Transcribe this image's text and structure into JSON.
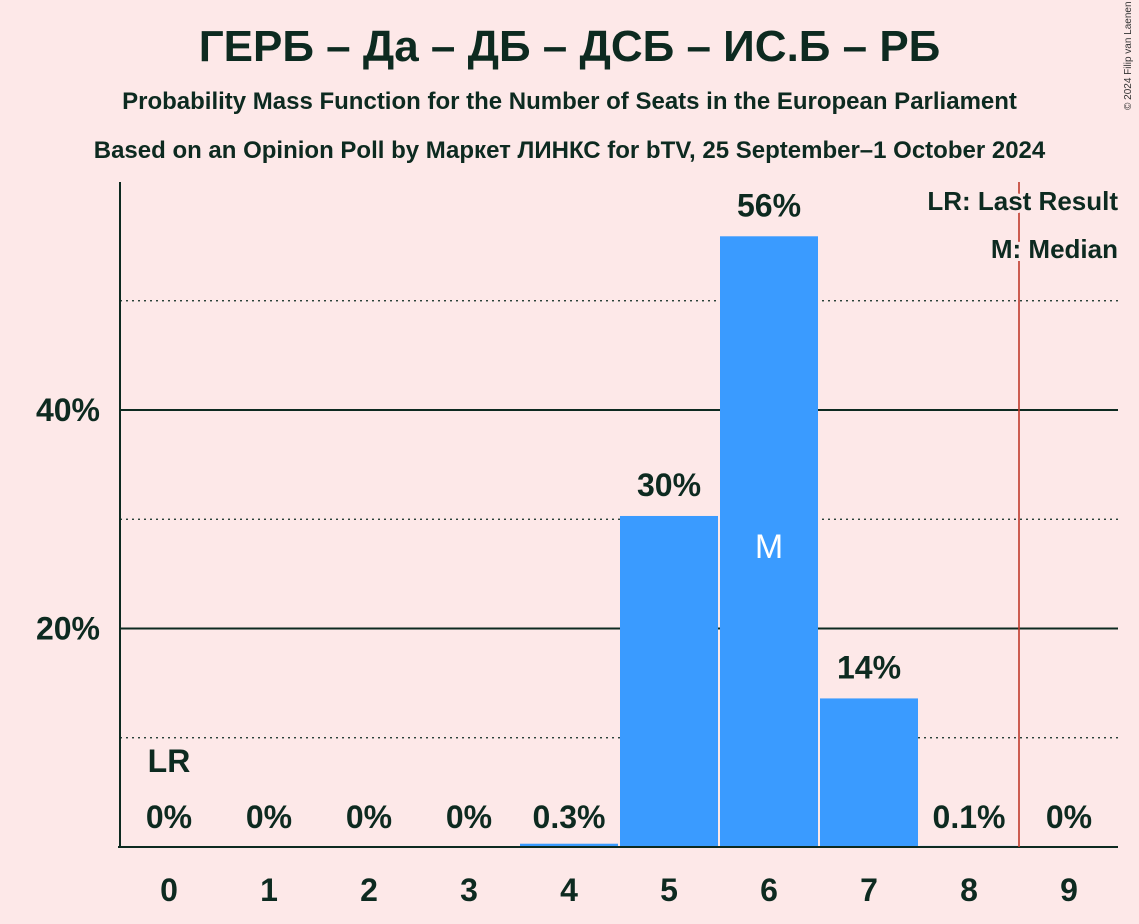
{
  "header": {
    "title": "ГЕРБ – Да – ДБ – ДСБ – ИС.Б – РБ",
    "subtitle": "Probability Mass Function for the Number of Seats in the European Parliament",
    "subtitle2": "Based on an Opinion Poll by Маркет ЛИНКС for bTV, 25 September–1 October 2024",
    "copyright": "© 2024 Filip van Laenen"
  },
  "legend": {
    "last_result": "LR: Last Result",
    "median": "M: Median"
  },
  "colors": {
    "background": "#FDE8E8",
    "bar": "#3A9BFF",
    "text": "#0D2A20",
    "last_result_line": "#C0392B"
  },
  "chart_data": {
    "type": "bar",
    "categories": [
      "0",
      "1",
      "2",
      "3",
      "4",
      "5",
      "6",
      "7",
      "8",
      "9"
    ],
    "values": [
      0,
      0,
      0,
      0,
      0.3,
      30,
      56,
      14,
      0.1,
      0
    ],
    "bar_heights": [
      0,
      0,
      0,
      0,
      0.3,
      30.3,
      55.9,
      13.6,
      0.1,
      0
    ],
    "data_labels": [
      "0%",
      "0%",
      "0%",
      "0%",
      "0.3%",
      "30%",
      "56%",
      "14%",
      "0.1%",
      "0%"
    ],
    "y_ticks": [
      20,
      40
    ],
    "y_tick_labels": [
      "20%",
      "40%"
    ],
    "y_dotted_gridlines": [
      10,
      30,
      50
    ],
    "ylim": [
      0,
      61
    ],
    "last_result_seats": 0,
    "last_result_label": "LR",
    "median_seats": 6,
    "median_label": "M",
    "threshold_line_x": 8.5,
    "grid": true,
    "legend_position": "top-right"
  }
}
